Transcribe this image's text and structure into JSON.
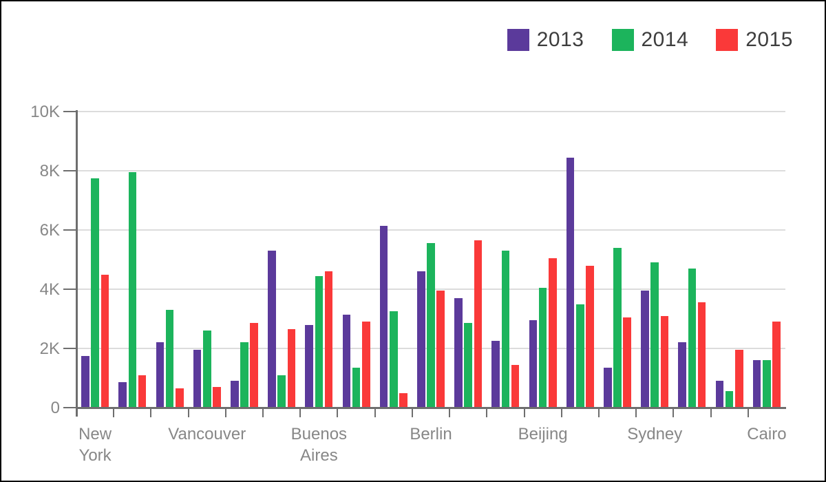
{
  "legend": {
    "items": [
      {
        "label": "2013",
        "color": "#5b3a9b"
      },
      {
        "label": "2014",
        "color": "#1cb45c"
      },
      {
        "label": "2015",
        "color": "#fa3939"
      }
    ]
  },
  "chart_data": {
    "type": "bar",
    "title": "",
    "xlabel": "",
    "ylabel": "",
    "categories": [
      "New York",
      "",
      "",
      "Vancouver",
      "",
      "",
      "Buenos Aires",
      "",
      "",
      "Berlin",
      "",
      "",
      "Beijing",
      "",
      "",
      "Sydney",
      "",
      "",
      "Cairo"
    ],
    "visible_category_labels": [
      "New York",
      "Vancouver",
      "Buenos Aires",
      "Berlin",
      "Beijing",
      "Sydney",
      "Cairo"
    ],
    "series": [
      {
        "name": "2013",
        "color": "#5b3a9b",
        "values": [
          1750,
          850,
          2200,
          1950,
          900,
          5300,
          2800,
          3150,
          6150,
          4600,
          3700,
          2250,
          2950,
          8450,
          1350,
          3950,
          2200,
          900,
          1600
        ]
      },
      {
        "name": "2014",
        "color": "#1cb45c",
        "values": [
          7750,
          7950,
          3300,
          2600,
          2200,
          1100,
          4450,
          1350,
          3250,
          5550,
          2850,
          5300,
          4050,
          3500,
          5400,
          4900,
          4700,
          550,
          1600
        ]
      },
      {
        "name": "2015",
        "color": "#fa3939",
        "values": [
          4500,
          1100,
          650,
          700,
          2850,
          2650,
          4600,
          2900,
          500,
          3950,
          5650,
          1450,
          5050,
          4800,
          3050,
          3100,
          3550,
          1950,
          2900
        ]
      }
    ],
    "ylim": [
      0,
      10000
    ],
    "ytick_values": [
      0,
      2000,
      4000,
      6000,
      8000,
      10000
    ],
    "ytick_labels": [
      "0",
      "2K",
      "4K",
      "6K",
      "8K",
      "10K"
    ],
    "grid": true,
    "legend_position": "top-right"
  },
  "colors": {
    "axis": "#6e6e6e",
    "grid": "#dcdcdc",
    "tick_label": "#878787",
    "legend_text": "#3d3d3d",
    "background": "#ffffff",
    "border": "#000000"
  }
}
